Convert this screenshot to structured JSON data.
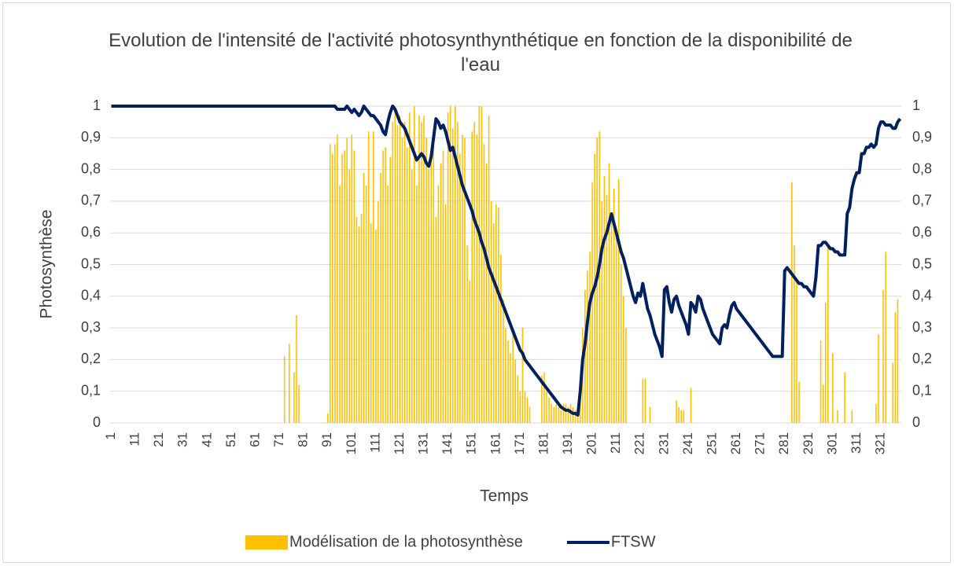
{
  "chart_data": {
    "type": "bar_line",
    "title": "Evolution de l'intensité de l'activité photosynthynthétique en fonction de la disponibilité de l'eau",
    "x_label": "Temps",
    "y_label": "Photosynthèse",
    "x": [
      1,
      2,
      3,
      4,
      5,
      6,
      7,
      8,
      9,
      10,
      11,
      12,
      13,
      14,
      15,
      16,
      17,
      18,
      19,
      20,
      21,
      22,
      23,
      24,
      25,
      26,
      27,
      28,
      29,
      30,
      31,
      32,
      33,
      34,
      35,
      36,
      37,
      38,
      39,
      40,
      41,
      42,
      43,
      44,
      45,
      46,
      47,
      48,
      49,
      50,
      51,
      52,
      53,
      54,
      55,
      56,
      57,
      58,
      59,
      60,
      61,
      62,
      63,
      64,
      65,
      66,
      67,
      68,
      69,
      70,
      71,
      72,
      73,
      74,
      75,
      76,
      77,
      78,
      79,
      80,
      81,
      82,
      83,
      84,
      85,
      86,
      87,
      88,
      89,
      90,
      91,
      92,
      93,
      94,
      95,
      96,
      97,
      98,
      99,
      100,
      101,
      102,
      103,
      104,
      105,
      106,
      107,
      108,
      109,
      110,
      111,
      112,
      113,
      114,
      115,
      116,
      117,
      118,
      119,
      120,
      121,
      122,
      123,
      124,
      125,
      126,
      127,
      128,
      129,
      130,
      131,
      132,
      133,
      134,
      135,
      136,
      137,
      138,
      139,
      140,
      141,
      142,
      143,
      144,
      145,
      146,
      147,
      148,
      149,
      150,
      151,
      152,
      153,
      154,
      155,
      156,
      157,
      158,
      159,
      160,
      161,
      162,
      163,
      164,
      165,
      166,
      167,
      168,
      169,
      170,
      171,
      172,
      173,
      174,
      175,
      176,
      177,
      178,
      179,
      180,
      181,
      182,
      183,
      184,
      185,
      186,
      187,
      188,
      189,
      190,
      191,
      192,
      193,
      194,
      195,
      196,
      197,
      198,
      199,
      200,
      201,
      202,
      203,
      204,
      205,
      206,
      207,
      208,
      209,
      210,
      211,
      212,
      213,
      214,
      215,
      216,
      217,
      218,
      219,
      220,
      221,
      222,
      223,
      224,
      225,
      226,
      227,
      228,
      229,
      230,
      231,
      232,
      233,
      234,
      235,
      236,
      237,
      238,
      239,
      240,
      241,
      242,
      243,
      244,
      245,
      246,
      247,
      248,
      249,
      250,
      251,
      252,
      253,
      254,
      255,
      256,
      257,
      258,
      259,
      260,
      261,
      262,
      263,
      264,
      265,
      266,
      267,
      268,
      269,
      270,
      271,
      272,
      273,
      274,
      275,
      276,
      277,
      278,
      279,
      280,
      281,
      282,
      283,
      284,
      285,
      286,
      287,
      288,
      289,
      290,
      291,
      292,
      293,
      294,
      295,
      296,
      297,
      298,
      299,
      300,
      301,
      302,
      303,
      304,
      305,
      306,
      307,
      308,
      309,
      310,
      311,
      312,
      313,
      314,
      315,
      316,
      317,
      318,
      319,
      320,
      321,
      322,
      323,
      324,
      325,
      326,
      327,
      328,
      329
    ],
    "xlim": [
      0.5,
      329.5
    ],
    "xticks": [
      1,
      11,
      21,
      31,
      41,
      51,
      61,
      71,
      81,
      91,
      101,
      111,
      121,
      131,
      141,
      151,
      161,
      171,
      181,
      191,
      201,
      211,
      221,
      231,
      241,
      251,
      261,
      271,
      281,
      291,
      301,
      311,
      321
    ],
    "ylim": [
      0,
      1
    ],
    "yticks": [
      0,
      {
        "value": 0.1,
        "label": "0,1"
      },
      {
        "value": 0.2,
        "label": "0,2"
      },
      {
        "value": 0.3,
        "label": "0,3"
      },
      {
        "value": 0.4,
        "label": "0,4"
      },
      {
        "value": 0.5,
        "label": "0,5"
      },
      {
        "value": 0.6,
        "label": "0,6"
      },
      {
        "value": 0.7,
        "label": "0,7"
      },
      {
        "value": 0.8,
        "label": "0,8"
      },
      {
        "value": 0.9,
        "label": "0,9"
      },
      1
    ],
    "y2lim": [
      0,
      1
    ],
    "y2ticks": [
      0,
      {
        "value": 0.1,
        "label": "0,1"
      },
      {
        "value": 0.2,
        "label": "0,2"
      },
      {
        "value": 0.3,
        "label": "0,3"
      },
      {
        "value": 0.4,
        "label": "0,4"
      },
      {
        "value": 0.5,
        "label": "0,5"
      },
      {
        "value": 0.6,
        "label": "0,6"
      },
      {
        "value": 0.7,
        "label": "0,7"
      },
      {
        "value": 0.8,
        "label": "0,8"
      },
      {
        "value": 0.9,
        "label": "0,9"
      },
      1
    ],
    "grid": true,
    "legend": "bottom",
    "series": [
      {
        "name": "Modélisation de la photosynthèse",
        "type": "bar",
        "color": "#FFC000",
        "values": [
          0,
          0,
          0,
          0,
          0,
          0,
          0,
          0,
          0,
          0,
          0,
          0,
          0,
          0,
          0,
          0,
          0,
          0,
          0,
          0,
          0,
          0,
          0,
          0,
          0,
          0,
          0,
          0,
          0,
          0,
          0,
          0,
          0,
          0,
          0,
          0,
          0,
          0,
          0,
          0,
          0,
          0,
          0,
          0,
          0,
          0,
          0,
          0,
          0,
          0,
          0,
          0,
          0,
          0,
          0,
          0,
          0,
          0,
          0,
          0,
          0,
          0,
          0,
          0,
          0,
          0,
          0,
          0,
          0,
          0,
          0,
          0,
          0.21,
          0,
          0.25,
          0,
          0.16,
          0.34,
          0.12,
          0,
          0,
          0,
          0,
          0,
          0,
          0,
          0,
          0,
          0,
          0,
          0.03,
          0.88,
          0.85,
          0.88,
          0.91,
          0.75,
          0.85,
          0.86,
          0.9,
          0.8,
          0.91,
          0.86,
          0.65,
          0.62,
          0.66,
          0.79,
          0.75,
          0.92,
          0.63,
          0.92,
          0.61,
          0.7,
          0.79,
          0.86,
          0.87,
          0.75,
          0.84,
          0.95,
          1,
          0.94,
          0.97,
          0.9,
          0.95,
          0.87,
          0.98,
          0.8,
          1,
          0.75,
          0.97,
          0.95,
          0.97,
          0.9,
          0.8,
          0.85,
          0.9,
          0.65,
          0.75,
          0.82,
          0.86,
          0.69,
          0.98,
          1,
          0.93,
          1,
          0.95,
          0.85,
          0.91,
          0.9,
          0.56,
          0.45,
          0.92,
          0.95,
          0.91,
          1,
          1,
          0.88,
          0.82,
          0.97,
          0.7,
          0.63,
          0.69,
          0.68,
          0.53,
          0.39,
          0.3,
          0.26,
          0.22,
          0.28,
          0.2,
          0.15,
          0.1,
          0.3,
          0.1,
          0.08,
          0.05,
          0,
          0,
          0,
          0,
          0.15,
          0.16,
          0.1,
          0.08,
          0.06,
          0.05,
          0.06,
          0.05,
          0.04,
          0.06,
          0.06,
          0.05,
          0.06,
          0.05,
          0.04,
          0.03,
          0.1,
          0.3,
          0.42,
          0.48,
          0.54,
          0.76,
          0.85,
          0.9,
          0.92,
          0.7,
          0.78,
          0.72,
          0.82,
          0.64,
          0.74,
          0.6,
          0.77,
          0.5,
          0.4,
          0.3,
          0,
          0,
          0,
          0,
          0,
          0,
          0.14,
          0.14,
          0,
          0.05,
          0,
          0,
          0,
          0,
          0,
          0,
          0,
          0,
          0,
          0,
          0.07,
          0.05,
          0.04,
          0.04,
          0,
          0,
          0.11,
          0,
          0,
          0,
          0,
          0,
          0,
          0,
          0,
          0,
          0,
          0,
          0,
          0,
          0,
          0,
          0,
          0,
          0,
          0,
          0,
          0,
          0,
          0,
          0,
          0,
          0,
          0,
          0,
          0,
          0,
          0,
          0,
          0,
          0,
          0,
          0,
          0,
          0,
          0,
          0,
          0,
          0.76,
          0.56,
          0.45,
          0.13,
          0,
          0,
          0,
          0,
          0,
          0,
          0,
          0,
          0.26,
          0.12,
          0.38,
          0.56,
          0,
          0.22,
          0,
          0.04,
          0,
          0,
          0.16,
          0,
          0,
          0.04,
          0,
          0,
          0,
          0,
          0,
          0,
          0,
          0,
          0,
          0.06,
          0.28,
          0,
          0.42,
          0.54,
          0,
          0,
          0.19,
          0.35,
          0.39,
          0
        ]
      },
      {
        "name": "FTSW",
        "type": "line",
        "axis": "y2",
        "color": "#002060",
        "values": [
          1,
          1,
          1,
          1,
          1,
          1,
          1,
          1,
          1,
          1,
          1,
          1,
          1,
          1,
          1,
          1,
          1,
          1,
          1,
          1,
          1,
          1,
          1,
          1,
          1,
          1,
          1,
          1,
          1,
          1,
          1,
          1,
          1,
          1,
          1,
          1,
          1,
          1,
          1,
          1,
          1,
          1,
          1,
          1,
          1,
          1,
          1,
          1,
          1,
          1,
          1,
          1,
          1,
          1,
          1,
          1,
          1,
          1,
          1,
          1,
          1,
          1,
          1,
          1,
          1,
          1,
          1,
          1,
          1,
          1,
          1,
          1,
          1,
          1,
          1,
          1,
          1,
          1,
          1,
          1,
          1,
          1,
          1,
          1,
          1,
          1,
          1,
          1,
          1,
          1,
          1,
          1,
          1,
          1,
          0.99,
          0.99,
          0.99,
          0.99,
          1,
          0.99,
          0.98,
          0.99,
          0.98,
          0.97,
          0.98,
          1,
          0.99,
          0.98,
          0.97,
          0.97,
          0.96,
          0.95,
          0.94,
          0.92,
          0.91,
          0.95,
          0.98,
          1,
          0.99,
          0.97,
          0.95,
          0.94,
          0.93,
          0.91,
          0.89,
          0.87,
          0.85,
          0.83,
          0.84,
          0.85,
          0.84,
          0.82,
          0.81,
          0.84,
          0.9,
          0.96,
          0.95,
          0.93,
          0.94,
          0.92,
          0.89,
          0.86,
          0.87,
          0.84,
          0.81,
          0.78,
          0.75,
          0.73,
          0.71,
          0.69,
          0.67,
          0.64,
          0.62,
          0.6,
          0.57,
          0.55,
          0.52,
          0.49,
          0.47,
          0.45,
          0.43,
          0.41,
          0.39,
          0.37,
          0.35,
          0.33,
          0.31,
          0.29,
          0.27,
          0.25,
          0.23,
          0.22,
          0.2,
          0.19,
          0.18,
          0.17,
          0.16,
          0.15,
          0.14,
          0.13,
          0.12,
          0.11,
          0.1,
          0.09,
          0.08,
          0.07,
          0.06,
          0.05,
          0.045,
          0.04,
          0.04,
          0.035,
          0.03,
          0.03,
          0.025,
          0.1,
          0.2,
          0.25,
          0.32,
          0.38,
          0.41,
          0.43,
          0.46,
          0.5,
          0.55,
          0.58,
          0.6,
          0.63,
          0.66,
          0.63,
          0.6,
          0.57,
          0.54,
          0.52,
          0.49,
          0.46,
          0.43,
          0.4,
          0.38,
          0.41,
          0.4,
          0.44,
          0.4,
          0.36,
          0.34,
          0.31,
          0.28,
          0.26,
          0.24,
          0.21,
          0.42,
          0.43,
          0.38,
          0.35,
          0.39,
          0.4,
          0.37,
          0.35,
          0.33,
          0.31,
          0.28,
          0.38,
          0.37,
          0.35,
          0.4,
          0.39,
          0.36,
          0.34,
          0.32,
          0.3,
          0.28,
          0.27,
          0.26,
          0.25,
          0.3,
          0.31,
          0.3,
          0.34,
          0.37,
          0.38,
          0.36,
          0.35,
          0.34,
          0.33,
          0.32,
          0.31,
          0.3,
          0.29,
          0.28,
          0.27,
          0.26,
          0.25,
          0.24,
          0.23,
          0.22,
          0.21,
          0.21,
          0.21,
          0.21,
          0.21,
          0.48,
          0.49,
          0.48,
          0.47,
          0.46,
          0.45,
          0.44,
          0.44,
          0.43,
          0.43,
          0.42,
          0.41,
          0.4,
          0.46,
          0.56,
          0.56,
          0.57,
          0.57,
          0.56,
          0.55,
          0.55,
          0.54,
          0.54,
          0.53,
          0.53,
          0.53,
          0.66,
          0.68,
          0.74,
          0.77,
          0.79,
          0.79,
          0.85,
          0.85,
          0.87,
          0.87,
          0.88,
          0.87,
          0.88,
          0.93,
          0.95,
          0.95,
          0.94,
          0.94,
          0.94,
          0.93,
          0.93,
          0.95,
          0.96
        ]
      }
    ]
  }
}
